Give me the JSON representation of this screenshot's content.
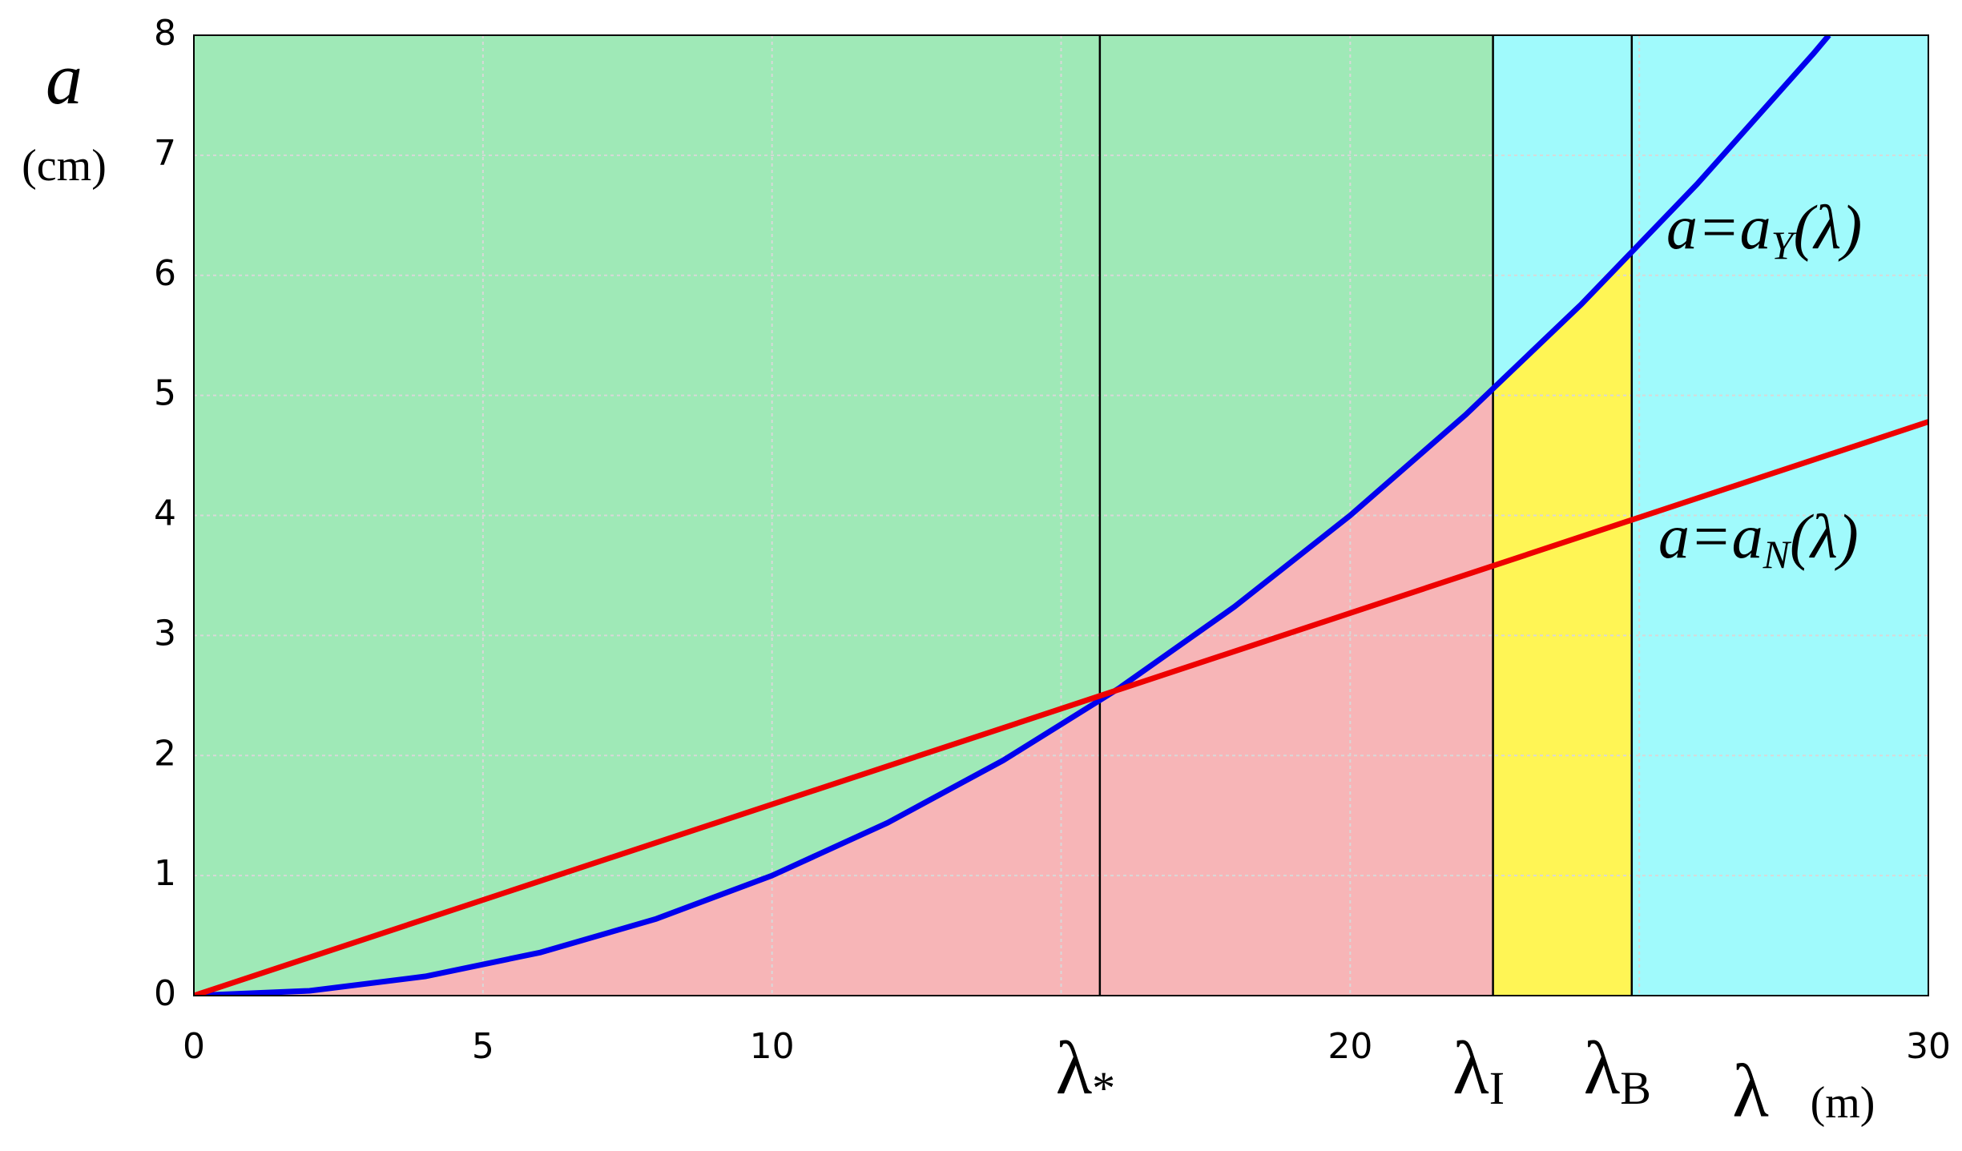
{
  "chart_data": {
    "type": "line",
    "y_label": {
      "symbol": "a",
      "unit": "(cm)"
    },
    "x_label": {
      "symbol": "λ",
      "unit": "(m)"
    },
    "xlim": [
      0,
      30
    ],
    "ylim": [
      0,
      8
    ],
    "xticks": [
      0,
      5,
      10,
      {
        "value": 15,
        "label": null
      },
      20,
      {
        "value": 25,
        "label": null
      },
      30
    ],
    "yticks": [
      0,
      1,
      2,
      3,
      4,
      5,
      6,
      7,
      8
    ],
    "grid": true,
    "series": [
      {
        "name": {
          "main": "a=a",
          "sub": "Y",
          "tail": "(λ)"
        },
        "color": "#0000ee",
        "x": [
          0,
          2,
          4,
          6,
          8,
          10,
          12,
          14,
          16,
          18,
          20,
          22,
          24,
          26,
          28,
          28.28
        ],
        "values": [
          0,
          0.04,
          0.16,
          0.36,
          0.64,
          1,
          1.44,
          1.96,
          2.56,
          3.24,
          4,
          4.84,
          5.76,
          6.76,
          7.84,
          8
        ]
      },
      {
        "name": {
          "main": "a=a",
          "sub": "N",
          "tail": "(λ)"
        },
        "color": "#ee0000",
        "x": [
          0,
          30
        ],
        "values": [
          0,
          4.78
        ]
      }
    ],
    "vlines": [
      {
        "value": 15.67,
        "symbol": "λ",
        "sub": "*"
      },
      {
        "value": 22.47,
        "symbol": "λ",
        "sub": "I"
      },
      {
        "value": 24.87,
        "symbol": "λ",
        "sub": "B"
      }
    ],
    "fills": {
      "left": "#9fe9b7",
      "right": "#a0fafc",
      "below_left": "#f7b5b7",
      "below_middle": "#fff555"
    }
  }
}
